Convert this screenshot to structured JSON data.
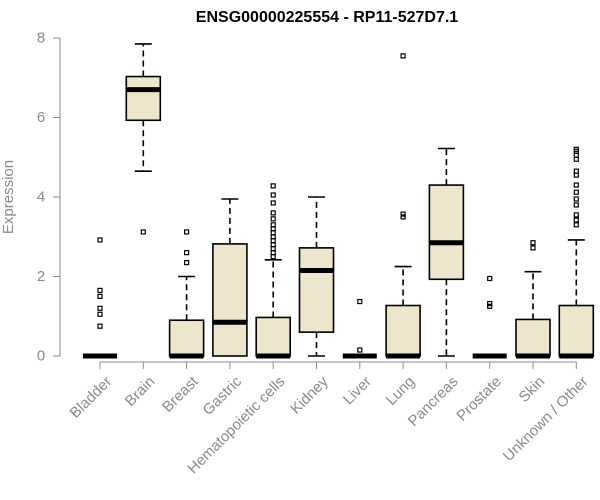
{
  "chart_data": {
    "type": "boxplot",
    "title": "ENSG00000225554 - RP11-527D7.1",
    "xlabel": "",
    "ylabel": "Expression",
    "ylim": [
      0,
      8
    ],
    "yticks": [
      0,
      2,
      4,
      6,
      8
    ],
    "box_color": "#ede6cc",
    "categories": [
      "Bladder",
      "Brain",
      "Breast",
      "Gastric",
      "Hematopoietic cells",
      "Kidney",
      "Liver",
      "Lung",
      "Pancreas",
      "Prostate",
      "Skin",
      "Unknown / Other"
    ],
    "series": [
      {
        "name": "Bladder",
        "min": 0,
        "q1": 0,
        "median": 0,
        "q3": 0,
        "max": 0,
        "outliers": [
          0.75,
          1.05,
          1.2,
          1.5,
          1.65,
          2.92
        ]
      },
      {
        "name": "Brain",
        "min": 4.65,
        "q1": 5.93,
        "median": 6.7,
        "q3": 7.03,
        "max": 7.85,
        "outliers": [
          3.12
        ]
      },
      {
        "name": "Breast",
        "min": 0,
        "q1": 0,
        "median": 0,
        "q3": 0.9,
        "max": 2.0,
        "outliers": [
          2.35,
          2.6,
          3.12
        ]
      },
      {
        "name": "Gastric",
        "min": 0,
        "q1": 0,
        "median": 0.85,
        "q3": 2.82,
        "max": 3.95,
        "outliers": []
      },
      {
        "name": "Hematopoietic cells",
        "min": 0,
        "q1": 0,
        "median": 0,
        "q3": 0.97,
        "max": 2.42,
        "outliers": [
          2.5,
          2.6,
          2.7,
          2.8,
          2.9,
          3.0,
          3.1,
          3.2,
          3.3,
          3.45,
          3.6,
          3.85,
          4.05,
          4.28
        ]
      },
      {
        "name": "Kidney",
        "min": 0,
        "q1": 0.6,
        "median": 2.15,
        "q3": 2.72,
        "max": 4.0,
        "outliers": []
      },
      {
        "name": "Liver",
        "min": 0,
        "q1": 0,
        "median": 0,
        "q3": 0,
        "max": 0,
        "outliers": [
          0.15,
          1.37
        ]
      },
      {
        "name": "Lung",
        "min": 0,
        "q1": 0,
        "median": 0,
        "q3": 1.27,
        "max": 2.25,
        "outliers": [
          3.5,
          3.57,
          7.55
        ]
      },
      {
        "name": "Pancreas",
        "min": 0,
        "q1": 1.93,
        "median": 2.85,
        "q3": 4.3,
        "max": 5.22,
        "outliers": []
      },
      {
        "name": "Prostate",
        "min": 0,
        "q1": 0,
        "median": 0,
        "q3": 0,
        "max": 0,
        "outliers": [
          1.25,
          1.32,
          1.95
        ]
      },
      {
        "name": "Skin",
        "min": 0,
        "q1": 0,
        "median": 0,
        "q3": 0.92,
        "max": 2.12,
        "outliers": [
          2.72,
          2.85
        ]
      },
      {
        "name": "Unknown / Other",
        "min": 0,
        "q1": 0,
        "median": 0,
        "q3": 1.27,
        "max": 2.92,
        "outliers": [
          3.3,
          3.42,
          3.55,
          3.8,
          3.95,
          4.12,
          4.3,
          4.55,
          4.65,
          4.95,
          5.05,
          5.15,
          5.2
        ]
      }
    ]
  }
}
